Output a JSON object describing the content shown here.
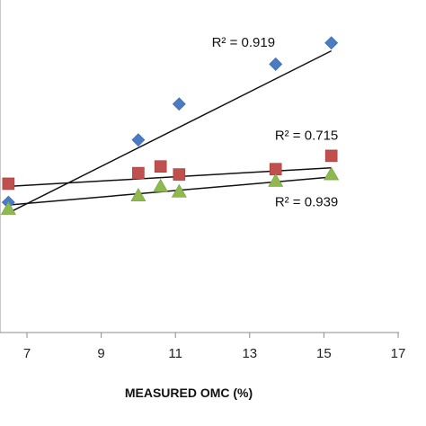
{
  "chart_data": {
    "type": "scatter",
    "xlabel": "MEASURED OMC (%)",
    "ylabel": "",
    "title": "",
    "xlim": [
      5,
      17
    ],
    "ylim": [
      5,
      28
    ],
    "x_ticks": [
      "7",
      "9",
      "11",
      "13",
      "15",
      "17"
    ],
    "x_tick_values": [
      7,
      9,
      11,
      13,
      15,
      17
    ],
    "grid": false,
    "series": [
      {
        "marker": "diamond",
        "color": "#4a7cc4",
        "points": [
          [
            6.5,
            14.8
          ],
          [
            10.0,
            19.5
          ],
          [
            11.1,
            22.2
          ],
          [
            13.7,
            25.2
          ],
          [
            15.2,
            26.8
          ]
        ],
        "trendline": [
          [
            6.5,
            14.0
          ],
          [
            15.2,
            26.2
          ]
        ],
        "r2_label": "R² = 0.919",
        "r2_pos": [
          13.8,
          26.5
        ]
      },
      {
        "marker": "square",
        "color": "#c0504d",
        "points": [
          [
            6.5,
            16.2
          ],
          [
            10.0,
            17.0
          ],
          [
            10.6,
            17.5
          ],
          [
            11.1,
            16.9
          ],
          [
            13.7,
            17.3
          ],
          [
            15.2,
            18.3
          ]
        ],
        "trendline": [
          [
            6.5,
            16.0
          ],
          [
            15.2,
            17.4
          ]
        ],
        "r2_label": "R² = 0.715",
        "r2_pos": [
          15.5,
          19.5
        ]
      },
      {
        "marker": "triangle",
        "color": "#8db94f",
        "points": [
          [
            6.5,
            14.3
          ],
          [
            10.0,
            15.3
          ],
          [
            10.6,
            16.0
          ],
          [
            11.1,
            15.6
          ],
          [
            13.7,
            16.4
          ],
          [
            15.2,
            16.9
          ]
        ],
        "trendline": [
          [
            6.5,
            14.6
          ],
          [
            15.2,
            16.7
          ]
        ],
        "r2_label": "R² = 0.939",
        "r2_pos": [
          15.5,
          14.5
        ]
      }
    ]
  }
}
